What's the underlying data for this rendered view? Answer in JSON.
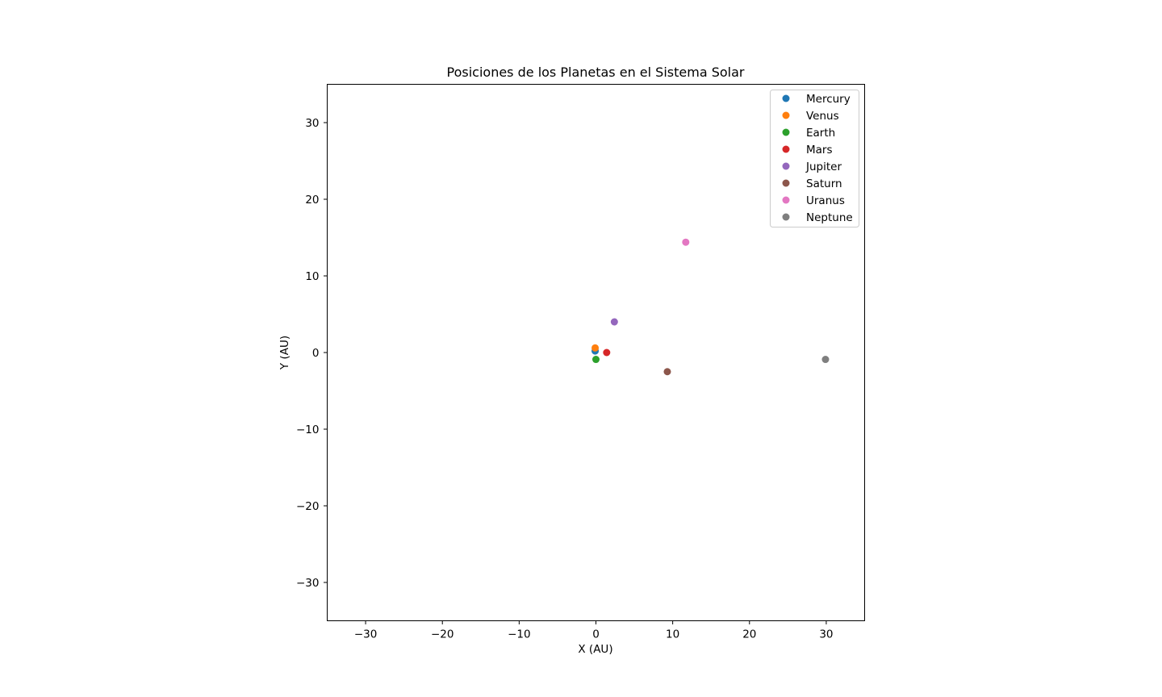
{
  "chart_data": {
    "type": "scatter",
    "title": "Posiciones de los Planetas en el Sistema Solar",
    "xlabel": "X (AU)",
    "ylabel": "Y (AU)",
    "xlim": [
      -35,
      35
    ],
    "ylim": [
      -35,
      35
    ],
    "xticks": [
      -30,
      -20,
      -10,
      0,
      10,
      20,
      30
    ],
    "yticks": [
      -30,
      -20,
      -10,
      0,
      10,
      20,
      30
    ],
    "grid": false,
    "legend_position": "top-right",
    "series": [
      {
        "name": "Mercury",
        "color": "#1f77b4",
        "x": [
          -0.1
        ],
        "y": [
          0.2
        ]
      },
      {
        "name": "Venus",
        "color": "#ff7f0e",
        "x": [
          -0.1
        ],
        "y": [
          0.6
        ]
      },
      {
        "name": "Earth",
        "color": "#2ca02c",
        "x": [
          0.0
        ],
        "y": [
          -0.9
        ]
      },
      {
        "name": "Mars",
        "color": "#d62728",
        "x": [
          1.4
        ],
        "y": [
          0.0
        ]
      },
      {
        "name": "Jupiter",
        "color": "#9467bd",
        "x": [
          2.4
        ],
        "y": [
          4.0
        ]
      },
      {
        "name": "Saturn",
        "color": "#8c564b",
        "x": [
          9.3
        ],
        "y": [
          -2.5
        ]
      },
      {
        "name": "Uranus",
        "color": "#e377c2",
        "x": [
          11.7
        ],
        "y": [
          14.4
        ]
      },
      {
        "name": "Neptune",
        "color": "#7f7f7f",
        "x": [
          29.9
        ],
        "y": [
          -0.9
        ]
      }
    ]
  }
}
